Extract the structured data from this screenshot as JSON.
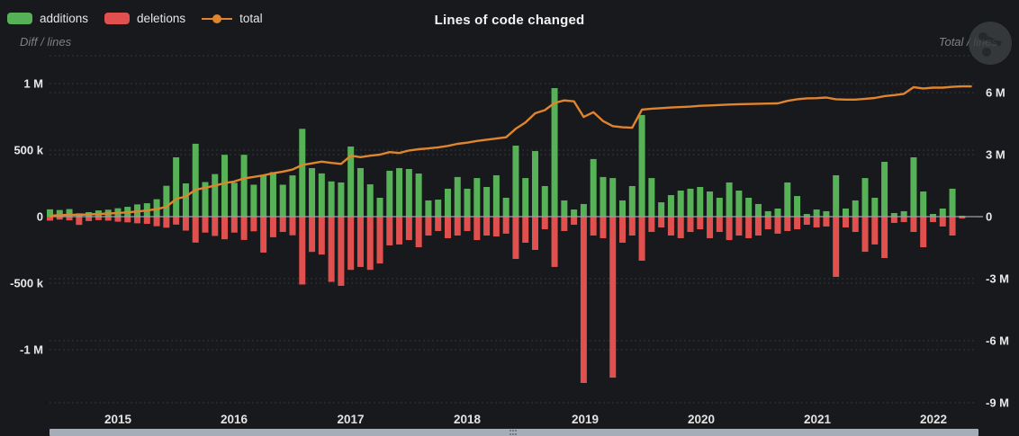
{
  "header": {
    "title": "Lines of code changed"
  },
  "legend": {
    "items": [
      {
        "label": "additions",
        "color": "#57b257",
        "marker": "box"
      },
      {
        "label": "deletions",
        "color": "#e0504e",
        "marker": "box"
      },
      {
        "label": "total",
        "color": "#e1842e",
        "marker": "line"
      }
    ]
  },
  "axes": {
    "left": {
      "title": "Diff / lines",
      "tick_labels": [
        "1 M",
        "500 k",
        "0",
        "-500 k",
        "-1 M"
      ]
    },
    "right": {
      "title": "Total / lines",
      "tick_labels": [
        "6 M",
        "3 M",
        "0",
        "-3 M",
        "-6 M",
        "-9 M"
      ]
    },
    "x": {
      "tick_labels": [
        "2015",
        "2016",
        "2017",
        "2018",
        "2019",
        "2020",
        "2021",
        "2022"
      ]
    }
  },
  "icons": {
    "export_menu": "share-icon"
  },
  "colors": {
    "background": "#17191c",
    "additions": "#57b257",
    "deletions": "#e0504e",
    "total": "#e1842e",
    "grid": "#33363a",
    "zero_line": "#9aa0a6",
    "tick_label": "#e9e9e9",
    "year_label": "#e3e3e3",
    "axis_title": "#7d8184",
    "scrollbar": "#a4adb8"
  },
  "chart_data": {
    "type": "bar+line combo (monthly additions/deletions bars on left axis, cumulative total line on right axis)",
    "title": "Lines of code changed",
    "start_month": "2014-06",
    "end_month": "2022-05",
    "left_ylabel": "Diff / lines",
    "right_ylabel": "Total / lines",
    "left_ylim": [
      -1480000,
      1210000
    ],
    "right_ylim": [
      -9500000,
      7800000
    ],
    "grid": "dashed horizontal",
    "legend_position": "top-left",
    "series": [
      {
        "name": "additions",
        "axis": "left",
        "type": "bar",
        "values": [
          55000,
          50000,
          57000,
          25000,
          34000,
          47000,
          52000,
          63000,
          74000,
          92000,
          101000,
          131000,
          232000,
          446000,
          250000,
          548000,
          260000,
          320000,
          465000,
          255000,
          465000,
          240000,
          310000,
          335000,
          240000,
          310000,
          660000,
          365000,
          325000,
          265000,
          257000,
          527000,
          365000,
          243000,
          142000,
          345000,
          365000,
          358000,
          324000,
          122000,
          128000,
          210000,
          298000,
          210000,
          290000,
          223000,
          311000,
          142000,
          534000,
          290000,
          493000,
          230000,
          966000,
          122000,
          54000,
          95000,
          433000,
          298000,
          290000,
          122000,
          230000,
          764000,
          290000,
          108000,
          162000,
          196000,
          210000,
          223000,
          189000,
          142000,
          257000,
          196000,
          142000,
          95000,
          41000,
          61000,
          257000,
          155000,
          20000,
          54000,
          41000,
          311000,
          61000,
          122000,
          290000,
          142000,
          412000,
          27000,
          41000,
          446000,
          189000,
          20000,
          61000,
          210000,
          7000,
          0
        ]
      },
      {
        "name": "deletions",
        "axis": "left",
        "type": "bar",
        "values": [
          -30000,
          -22000,
          -28000,
          -62000,
          -33000,
          -26000,
          -30000,
          -38000,
          -43000,
          -50000,
          -54000,
          -72000,
          -83000,
          -60000,
          -105000,
          -195000,
          -120000,
          -145000,
          -170000,
          -120000,
          -175000,
          -110000,
          -270000,
          -155000,
          -115000,
          -140000,
          -510000,
          -265000,
          -285000,
          -490000,
          -520000,
          -400000,
          -378000,
          -400000,
          -352000,
          -216000,
          -209000,
          -176000,
          -230000,
          -142000,
          -108000,
          -162000,
          -142000,
          -108000,
          -176000,
          -142000,
          -149000,
          -128000,
          -318000,
          -196000,
          -250000,
          -95000,
          -378000,
          -108000,
          -61000,
          -1250000,
          -142000,
          -162000,
          -1210000,
          -196000,
          -142000,
          -331000,
          -115000,
          -81000,
          -142000,
          -162000,
          -115000,
          -95000,
          -162000,
          -115000,
          -176000,
          -142000,
          -162000,
          -142000,
          -95000,
          -128000,
          -108000,
          -95000,
          -61000,
          -81000,
          -74000,
          -453000,
          -81000,
          -115000,
          -264000,
          -209000,
          -311000,
          -47000,
          -41000,
          -115000,
          -230000,
          -41000,
          -74000,
          -142000,
          -14000,
          0
        ]
      },
      {
        "name": "total",
        "axis": "right",
        "type": "line",
        "values": [
          50000,
          70000,
          90000,
          90000,
          110000,
          130000,
          150000,
          180000,
          210000,
          250000,
          300000,
          360000,
          480000,
          850000,
          980000,
          1300000,
          1400000,
          1500000,
          1620000,
          1700000,
          1850000,
          1920000,
          2000000,
          2100000,
          2180000,
          2280000,
          2500000,
          2580000,
          2660000,
          2600000,
          2550000,
          2950000,
          2880000,
          2950000,
          3000000,
          3120000,
          3080000,
          3200000,
          3260000,
          3300000,
          3350000,
          3420000,
          3520000,
          3580000,
          3660000,
          3720000,
          3780000,
          3840000,
          4250000,
          4550000,
          5000000,
          5150000,
          5500000,
          5620000,
          5580000,
          4820000,
          5050000,
          4620000,
          4380000,
          4320000,
          4300000,
          5180000,
          5220000,
          5250000,
          5280000,
          5300000,
          5320000,
          5360000,
          5380000,
          5400000,
          5420000,
          5440000,
          5450000,
          5460000,
          5470000,
          5480000,
          5600000,
          5680000,
          5720000,
          5730000,
          5760000,
          5680000,
          5660000,
          5660000,
          5700000,
          5740000,
          5830000,
          5880000,
          5940000,
          6260000,
          6200000,
          6240000,
          6240000,
          6280000,
          6300000,
          6300000
        ]
      }
    ]
  }
}
